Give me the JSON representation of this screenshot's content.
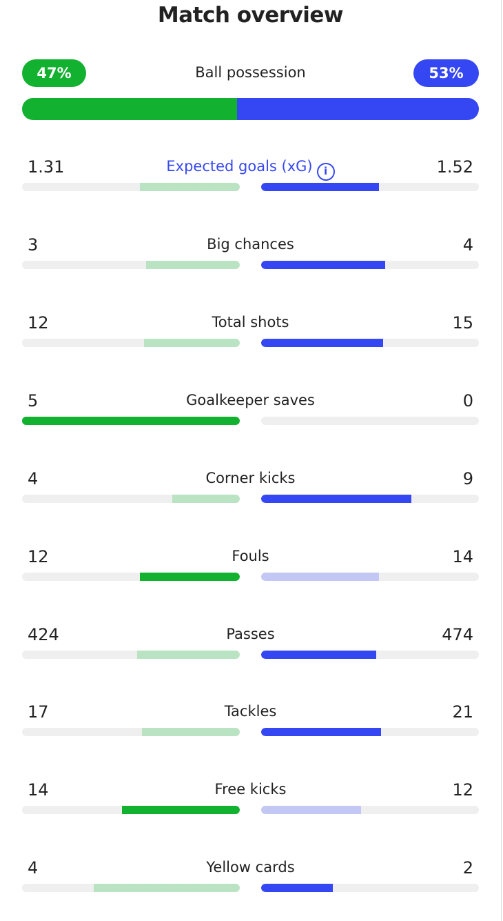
{
  "title": "Match overview",
  "colors": {
    "home_strong": "#12b12f",
    "home_light": "#b9e3c2",
    "away_strong": "#3547f2",
    "away_light": "#c3c7f3",
    "track": "#efefef"
  },
  "possession": {
    "label": "Ball possession",
    "home": "47%",
    "away": "53%",
    "home_fraction": 0.47,
    "away_fraction": 0.53
  },
  "info_icon": "info-icon",
  "stats": [
    {
      "key": "xg",
      "label": "Expected goals (xG)",
      "home": "1.31",
      "away": "1.52",
      "home_fraction": 0.46,
      "away_fraction": 0.54,
      "leader": "away",
      "link": true
    },
    {
      "key": "big-chances",
      "label": "Big chances",
      "home": "3",
      "away": "4",
      "home_fraction": 0.43,
      "away_fraction": 0.57,
      "leader": "away"
    },
    {
      "key": "total-shots",
      "label": "Total shots",
      "home": "12",
      "away": "15",
      "home_fraction": 0.44,
      "away_fraction": 0.56,
      "leader": "away"
    },
    {
      "key": "goalkeeper-saves",
      "label": "Goalkeeper saves",
      "home": "5",
      "away": "0",
      "home_fraction": 1.0,
      "away_fraction": 0.0,
      "leader": "home"
    },
    {
      "key": "corner-kicks",
      "label": "Corner kicks",
      "home": "4",
      "away": "9",
      "home_fraction": 0.31,
      "away_fraction": 0.69,
      "leader": "away"
    },
    {
      "key": "fouls",
      "label": "Fouls",
      "home": "12",
      "away": "14",
      "home_fraction": 0.46,
      "away_fraction": 0.54,
      "leader": "home"
    },
    {
      "key": "passes",
      "label": "Passes",
      "home": "424",
      "away": "474",
      "home_fraction": 0.47,
      "away_fraction": 0.53,
      "leader": "away"
    },
    {
      "key": "tackles",
      "label": "Tackles",
      "home": "17",
      "away": "21",
      "home_fraction": 0.45,
      "away_fraction": 0.55,
      "leader": "away"
    },
    {
      "key": "free-kicks",
      "label": "Free kicks",
      "home": "14",
      "away": "12",
      "home_fraction": 0.54,
      "away_fraction": 0.46,
      "leader": "home"
    },
    {
      "key": "yellow-cards",
      "label": "Yellow cards",
      "home": "4",
      "away": "2",
      "home_fraction": 0.67,
      "away_fraction": 0.33,
      "leader": "away"
    }
  ]
}
